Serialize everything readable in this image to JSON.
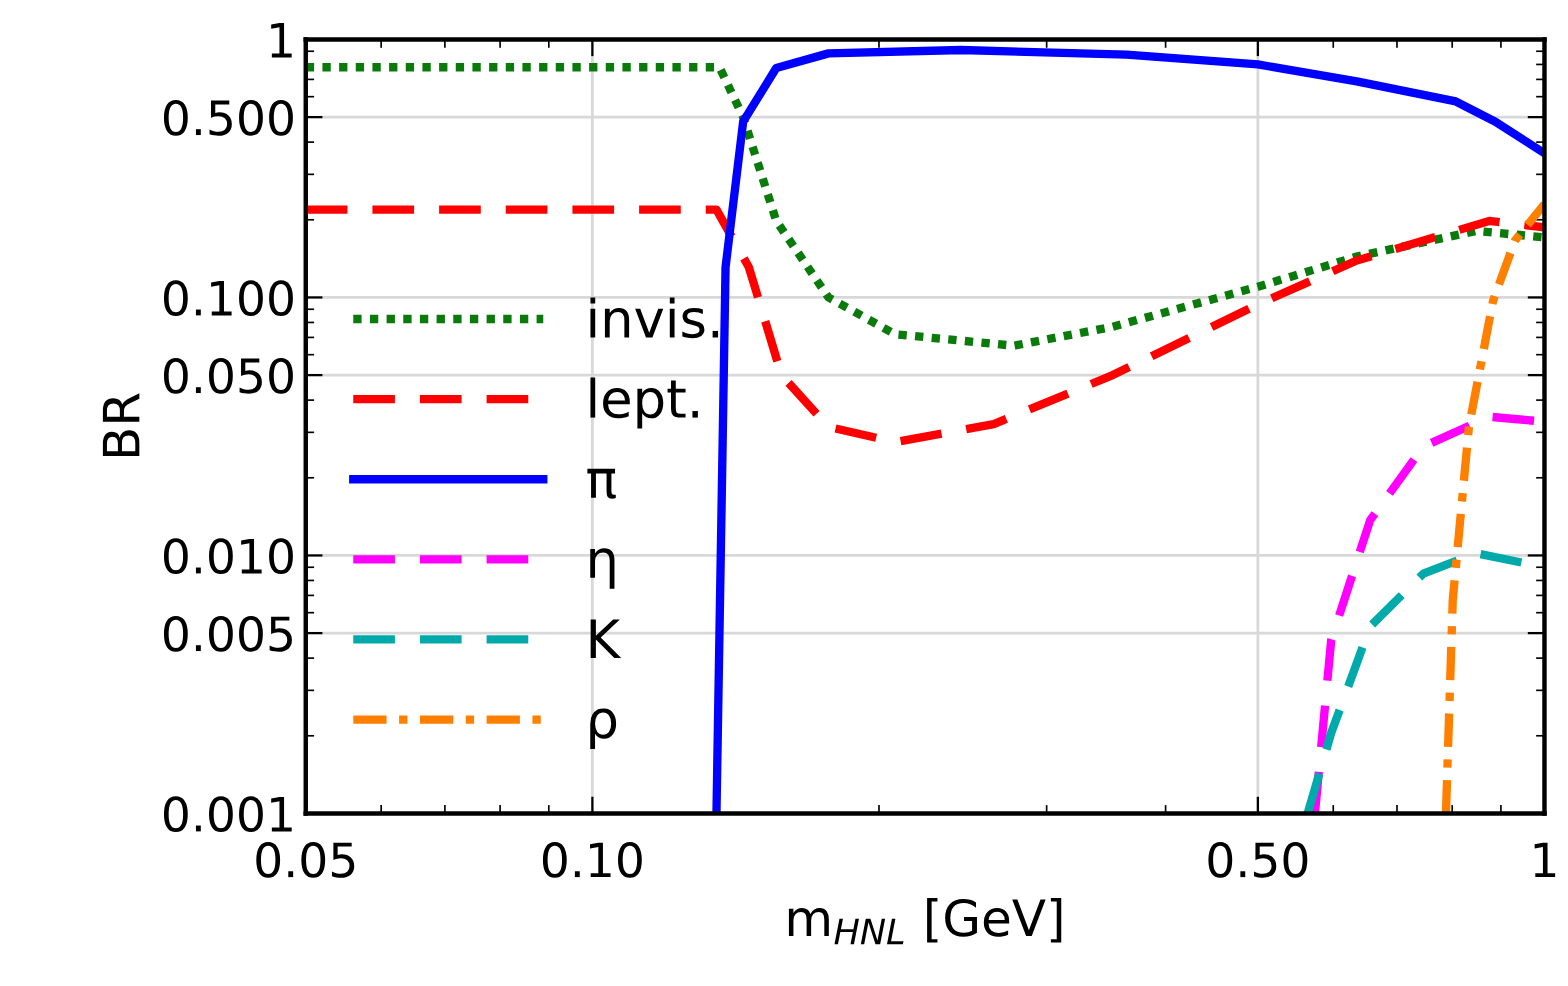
{
  "chart_data": {
    "type": "line",
    "xlabel": "m$_{HNL}$ [GeV]",
    "ylabel": "BR",
    "log": "xy",
    "grid": true,
    "legend": "center left",
    "xlim": [
      0.05,
      1
    ],
    "xticks": [
      0.05,
      {
        "value": 0.1,
        "label": "0.10"
      },
      {
        "value": 0.5,
        "label": "0.50"
      },
      1
    ],
    "ylim": [
      0.001,
      1
    ],
    "yticks": [
      0.001,
      {
        "value": 0.005,
        "label": "0.005"
      },
      {
        "value": 0.01,
        "label": "0.010"
      },
      {
        "value": 0.05,
        "label": "0.050"
      },
      {
        "value": 0.1,
        "label": "0.100"
      },
      {
        "value": 0.5,
        "label": "0.500"
      },
      1
    ],
    "series": [
      {
        "name": "invis.",
        "color": "#0a7a0a",
        "line_style": "dotted",
        "x": [
          0.05,
          0.136,
          0.144,
          0.156,
          0.177,
          0.208,
          0.277,
          0.352,
          0.5,
          0.635,
          0.847,
          1.0
        ],
        "values": [
          0.78,
          0.78,
          0.5,
          0.198,
          0.1,
          0.072,
          0.065,
          0.077,
          0.11,
          0.144,
          0.181,
          0.171
        ]
      },
      {
        "name": "lept.",
        "color": "#ff0000",
        "line_style": "dashed",
        "x": [
          0.05,
          0.135,
          0.146,
          0.158,
          0.177,
          0.208,
          0.264,
          0.352,
          0.5,
          0.635,
          0.875,
          1.0
        ],
        "values": [
          0.219,
          0.219,
          0.131,
          0.05,
          0.0315,
          0.0275,
          0.0323,
          0.05,
          0.094,
          0.139,
          0.198,
          0.187
        ]
      },
      {
        "name": "π",
        "color": "#0000ff",
        "line_style": "solid",
        "x": [
          0.135,
          0.138,
          0.144,
          0.156,
          0.177,
          0.244,
          0.364,
          0.5,
          0.635,
          0.807,
          0.888,
          1.0
        ],
        "values": [
          0.001,
          0.131,
          0.48,
          0.775,
          0.883,
          0.91,
          0.873,
          0.8,
          0.688,
          0.575,
          0.48,
          0.362
        ]
      },
      {
        "name": "η",
        "color": "#ff00ff",
        "line_style": "dashed",
        "x": [
          0.574,
          0.597,
          0.656,
          0.746,
          0.875,
          1.0
        ],
        "values": [
          0.001,
          0.0047,
          0.0137,
          0.0264,
          0.0345,
          0.033
        ]
      },
      {
        "name": "K",
        "color": "#00aaaa",
        "line_style": "dashed",
        "x": [
          0.564,
          0.597,
          0.656,
          0.746,
          0.847,
          1.0
        ],
        "values": [
          0.001,
          0.00205,
          0.0053,
          0.0085,
          0.0102,
          0.009
        ]
      },
      {
        "name": "ρ",
        "color": "#ff8000",
        "line_style": "dashdot",
        "x": [
          0.788,
          0.801,
          0.833,
          0.883,
          0.931,
          1.0
        ],
        "values": [
          0.001,
          0.0067,
          0.0315,
          0.097,
          0.166,
          0.23
        ]
      }
    ]
  }
}
